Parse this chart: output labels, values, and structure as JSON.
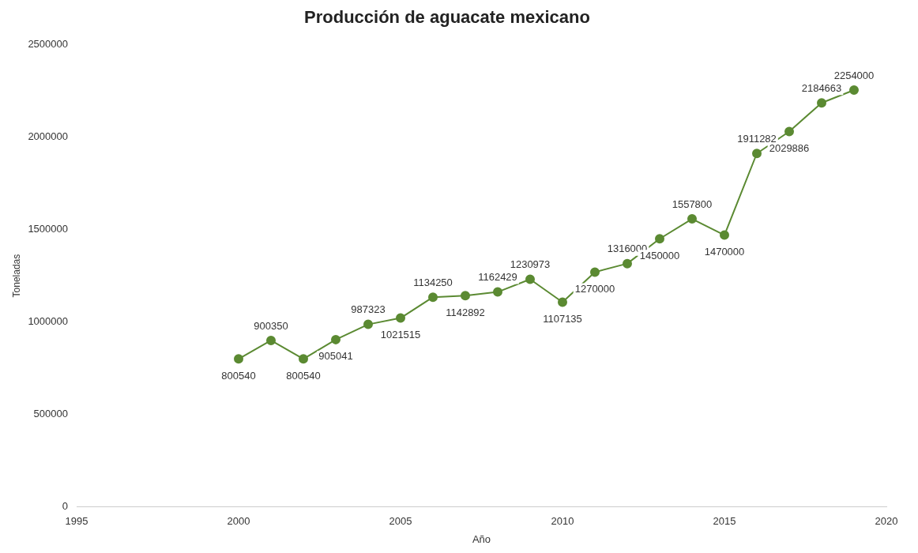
{
  "chart_data": {
    "type": "line",
    "title": "Producción de aguacate mexicano",
    "xlabel": "Año",
    "ylabel": "Toneladas",
    "x": [
      2000,
      2001,
      2002,
      2003,
      2004,
      2005,
      2006,
      2007,
      2008,
      2009,
      2010,
      2011,
      2012,
      2013,
      2014,
      2015,
      2016,
      2017,
      2018,
      2019
    ],
    "series": [
      {
        "color": "#5b8a32",
        "values": [
          800540,
          900350,
          800540,
          905041,
          987323,
          1021515,
          1134250,
          1142892,
          1162429,
          1230973,
          1107135,
          1270000,
          1316000,
          1450000,
          1557800,
          1470000,
          1911282,
          2029886,
          2184663,
          2254000
        ]
      }
    ],
    "xlim": [
      1995,
      2020
    ],
    "xticks": [
      1995,
      2000,
      2005,
      2010,
      2015,
      2020
    ],
    "ylim": [
      0,
      2500000
    ],
    "yticks": [
      0,
      500000,
      1000000,
      1500000,
      2000000,
      2500000
    ],
    "grid": false,
    "legend": false,
    "marker": "circle",
    "line_style": "solid",
    "data_labels": true
  }
}
